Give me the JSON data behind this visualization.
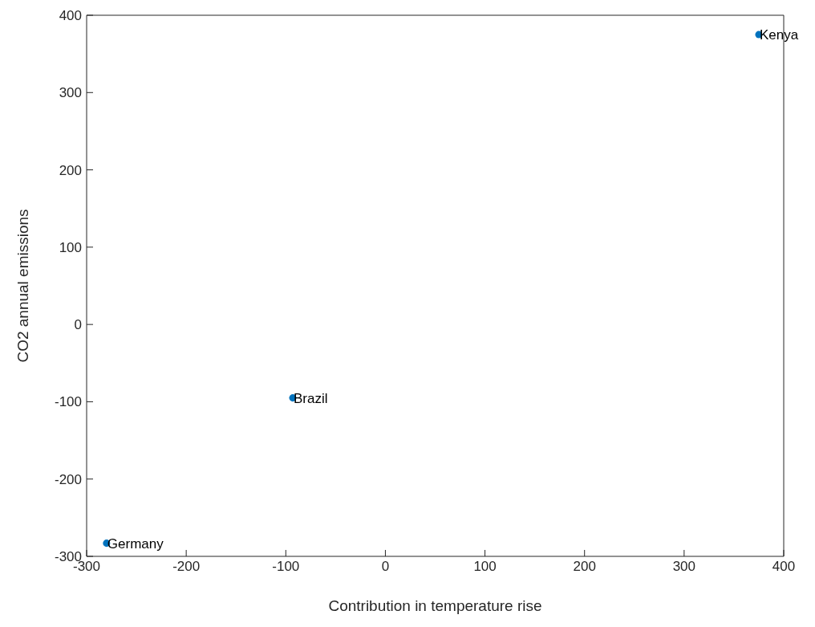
{
  "chart_data": {
    "type": "scatter",
    "xlabel": "Contribution in temperature rise",
    "ylabel": "CO2 annual emissions",
    "x": [
      -280,
      -93,
      375
    ],
    "series": [
      {
        "color": "#0072bd",
        "values": [
          -283,
          -95,
          375
        ]
      }
    ],
    "marker": "circle",
    "xlim": [
      -300,
      400
    ],
    "xticks": [
      -300,
      -200,
      -100,
      0,
      100,
      200,
      300,
      400
    ],
    "ylim": [
      -300,
      400
    ],
    "yticks": [
      -300,
      -200,
      -100,
      0,
      100,
      200,
      300,
      400
    ],
    "grid": false,
    "legend": false,
    "annotations": [
      {
        "text": "Germany",
        "x": -280,
        "y": -283
      },
      {
        "text": "Brazil",
        "x": -93,
        "y": -95
      },
      {
        "text": "Kenya",
        "x": 375,
        "y": 375
      }
    ]
  }
}
